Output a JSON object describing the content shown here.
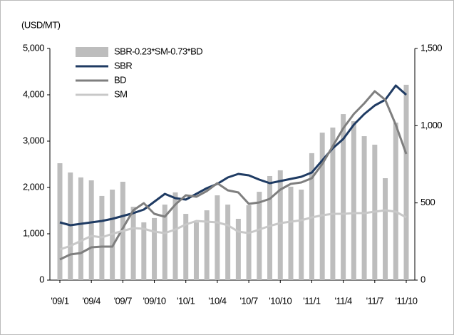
{
  "chart_data": {
    "type": "bar_line",
    "y_label": "(USD/MT)",
    "categories": [
      "'09/1",
      null,
      null,
      "'09/4",
      null,
      null,
      "'09/7",
      null,
      null,
      "'09/10",
      null,
      null,
      "'10/1",
      null,
      null,
      "'10/4",
      null,
      null,
      "'10/7",
      null,
      null,
      "'10/10",
      null,
      null,
      "'11/1",
      null,
      null,
      "'11/4",
      null,
      null,
      "'11/7",
      null,
      null,
      "'11/10"
    ],
    "series": [
      {
        "name": "SBR-0.23*SM-0.73*BD",
        "kind": "bar",
        "axis": "y2",
        "color": "#bdbdbd",
        "values": [
          757,
          697,
          665,
          646,
          545,
          586,
          637,
          475,
          374,
          402,
          489,
          568,
          429,
          374,
          452,
          549,
          489,
          397,
          485,
          572,
          674,
          711,
          605,
          586,
          822,
          955,
          988,
          1075,
          1029,
          932,
          877,
          660,
          1020,
          1265
        ]
      },
      {
        "name": "SBR",
        "kind": "line",
        "color": "#1f3b63",
        "values": [
          1246,
          1185,
          1215,
          1246,
          1277,
          1323,
          1385,
          1446,
          1523,
          1692,
          1862,
          1769,
          1738,
          1862,
          1985,
          2077,
          2215,
          2292,
          2262,
          2169,
          2092,
          2138,
          2185,
          2231,
          2323,
          2585,
          2846,
          3046,
          3354,
          3585,
          3769,
          3892,
          4200,
          4000
        ]
      },
      {
        "name": "BD",
        "kind": "line",
        "color": "#7f7f7f",
        "values": [
          446,
          554,
          585,
          708,
          723,
          723,
          1123,
          1508,
          1662,
          1431,
          1369,
          1631,
          1831,
          1800,
          1923,
          2092,
          1938,
          1892,
          1646,
          1677,
          1754,
          1954,
          2077,
          2108,
          2200,
          2508,
          2892,
          3277,
          3585,
          3815,
          4077,
          3892,
          3354,
          2723
        ]
      },
      {
        "name": "SM",
        "kind": "line",
        "color": "#c8c8c8",
        "values": [
          662,
          738,
          846,
          954,
          923,
          1000,
          1062,
          1123,
          1108,
          1046,
          1015,
          1092,
          1200,
          1277,
          1262,
          1246,
          1185,
          1046,
          1015,
          1092,
          1169,
          1231,
          1262,
          1292,
          1354,
          1400,
          1431,
          1431,
          1446,
          1446,
          1477,
          1508,
          1477,
          1354
        ]
      }
    ],
    "ylim": [
      0,
      5000
    ],
    "yticks": [
      0,
      {
        "value": 1000,
        "label": "1,000"
      },
      {
        "value": 2000,
        "label": "2,000"
      },
      {
        "value": 3000,
        "label": "3,000"
      },
      {
        "value": 4000,
        "label": "4,000"
      },
      {
        "value": 5000,
        "label": "5,000"
      }
    ],
    "y2lim": [
      0,
      1500
    ],
    "y2ticks": [
      0,
      500,
      {
        "value": 1000,
        "label": "1,000"
      },
      {
        "value": 1500,
        "label": "1,500"
      }
    ],
    "legend": "upper left"
  }
}
